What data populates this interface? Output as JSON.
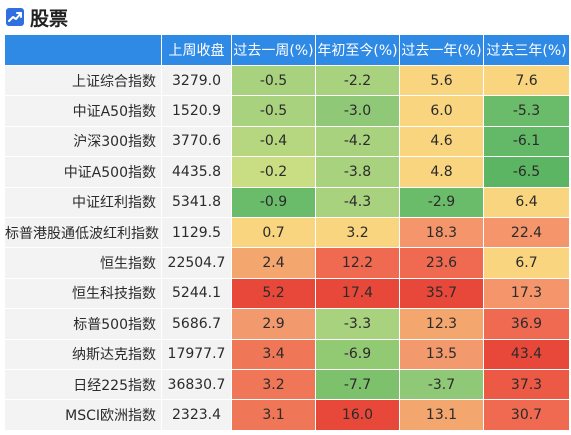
{
  "header": {
    "title": "股票",
    "icon": "trend-chart-icon"
  },
  "columns": [
    "",
    "上周收盘",
    "过去一周(%)",
    "年初至今(%)",
    "过去一年(%)",
    "过去三年(%)"
  ],
  "rows": [
    {
      "name": "上证综合指数",
      "close": "3279.0",
      "week": "-0.5",
      "ytd": "-2.2",
      "year": "5.6",
      "three": "7.6"
    },
    {
      "name": "中证A50指数",
      "close": "1520.9",
      "week": "-0.5",
      "ytd": "-3.0",
      "year": "6.0",
      "three": "-5.3"
    },
    {
      "name": "沪深300指数",
      "close": "3770.6",
      "week": "-0.4",
      "ytd": "-4.2",
      "year": "4.6",
      "three": "-6.1"
    },
    {
      "name": "中证A500指数",
      "close": "4435.8",
      "week": "-0.2",
      "ytd": "-3.8",
      "year": "4.8",
      "three": "-6.5"
    },
    {
      "name": "中证红利指数",
      "close": "5341.8",
      "week": "-0.9",
      "ytd": "-4.3",
      "year": "-2.9",
      "three": "6.4"
    },
    {
      "name": "标普港股通低波红利指数",
      "close": "1129.5",
      "week": "0.7",
      "ytd": "3.2",
      "year": "18.3",
      "three": "22.4"
    },
    {
      "name": "恒生指数",
      "close": "22504.7",
      "week": "2.4",
      "ytd": "12.2",
      "year": "23.6",
      "three": "6.7"
    },
    {
      "name": "恒生科技指数",
      "close": "5244.1",
      "week": "5.2",
      "ytd": "17.4",
      "year": "35.7",
      "three": "17.3"
    },
    {
      "name": "标普500指数",
      "close": "5686.7",
      "week": "2.9",
      "ytd": "-3.3",
      "year": "12.3",
      "three": "36.9"
    },
    {
      "name": "纳斯达克指数",
      "close": "17977.7",
      "week": "3.4",
      "ytd": "-6.9",
      "year": "13.5",
      "three": "43.4"
    },
    {
      "name": "日经225指数",
      "close": "36830.7",
      "week": "3.2",
      "ytd": "-7.7",
      "year": "-3.7",
      "three": "37.3"
    },
    {
      "name": "MSCI欧洲指数",
      "close": "2323.4",
      "week": "3.1",
      "ytd": "16.0",
      "year": "13.1",
      "three": "30.7"
    }
  ],
  "colors": {
    "header_bg": "#2f8ae6",
    "cells": [
      [
        "#a9d27f",
        "#a9d27f",
        "#f8d57e",
        "#f8d57e"
      ],
      [
        "#a9d27f",
        "#8fc876",
        "#f8d57e",
        "#6abb6a"
      ],
      [
        "#b6d780",
        "#a9d27f",
        "#f8d57e",
        "#63b967"
      ],
      [
        "#c9de82",
        "#a9d27f",
        "#f8d57e",
        "#5cb563"
      ],
      [
        "#6abb6a",
        "#a9d27f",
        "#6abb6a",
        "#f8d57e"
      ],
      [
        "#f8d57e",
        "#f8d57e",
        "#f4956b",
        "#f4956b"
      ],
      [
        "#f4a66f",
        "#ef6a50",
        "#ef6a50",
        "#f8d57e"
      ],
      [
        "#e8483a",
        "#e8483a",
        "#e8483a",
        "#f4956b"
      ],
      [
        "#f29a6d",
        "#a9d27f",
        "#f4a66f",
        "#ef6a50"
      ],
      [
        "#ef7657",
        "#92c973",
        "#f29a6d",
        "#e8483a"
      ],
      [
        "#ef7657",
        "#7dc16c",
        "#8fc876",
        "#ec5a45"
      ],
      [
        "#ef7657",
        "#e8483a",
        "#f4a66f",
        "#ef6a50"
      ]
    ]
  }
}
